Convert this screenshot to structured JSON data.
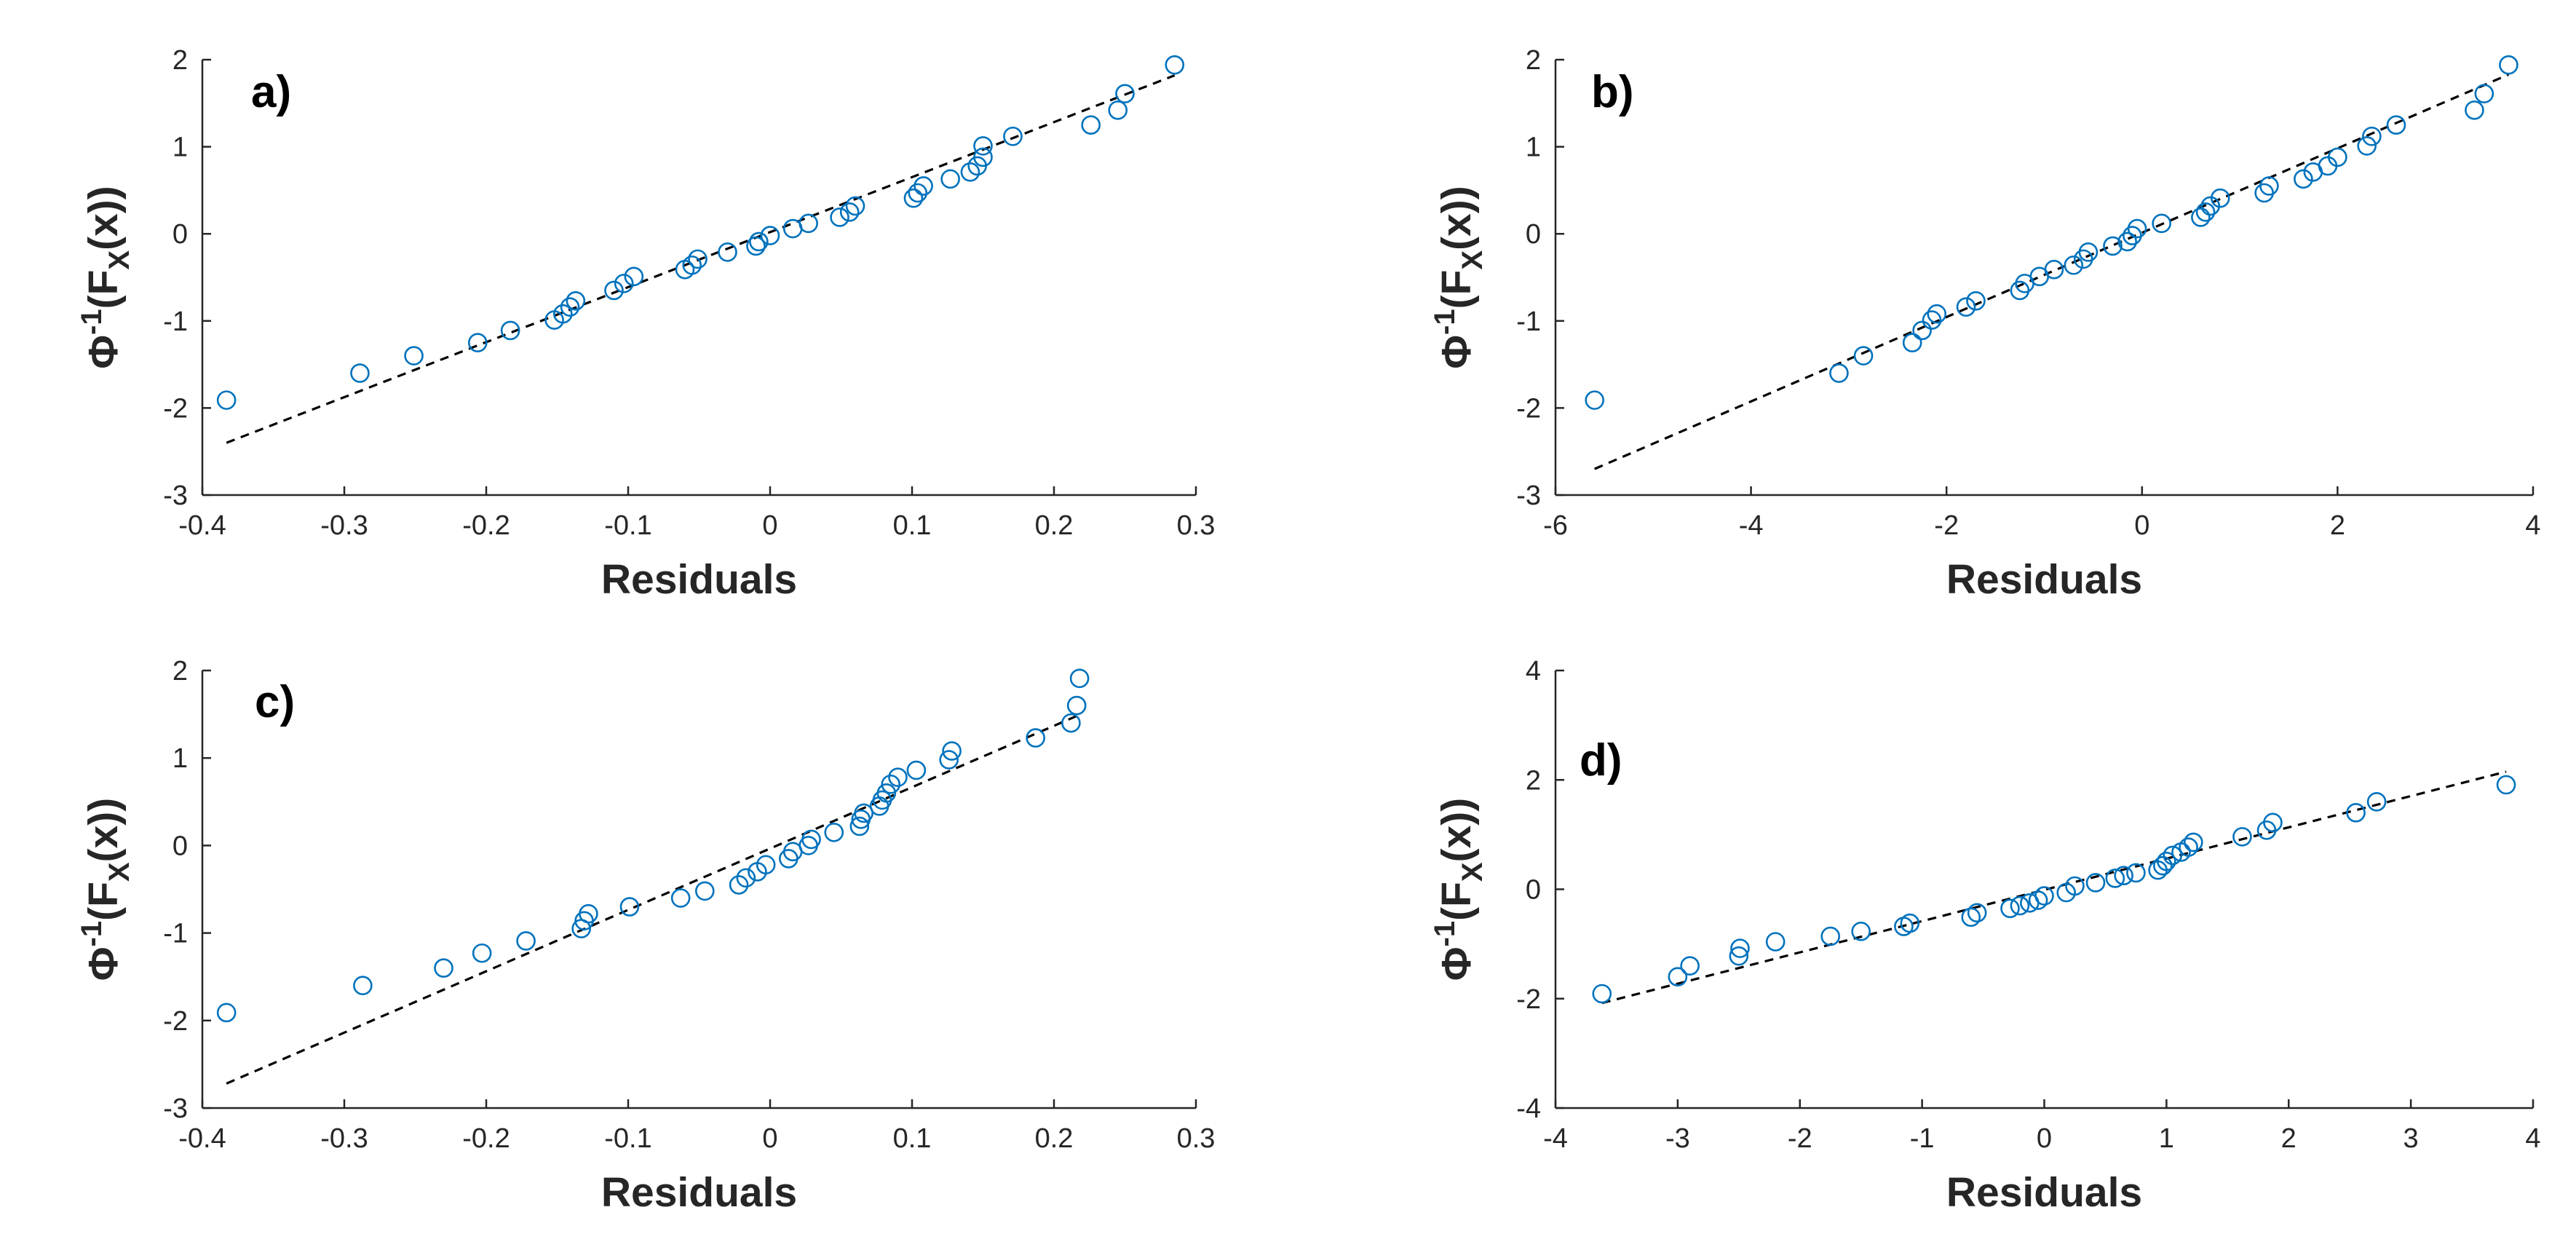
{
  "figure": {
    "background": "#ffffff",
    "marker_color": "#0072BD",
    "line_color": "#000000",
    "axis_color": "#262626"
  },
  "chart_data": [
    {
      "type": "scatter",
      "panel": "a)",
      "xlabel": "Residuals",
      "ylabel_parts": [
        "Φ",
        "-1",
        "(F",
        "X",
        "(x))"
      ],
      "xlim": [
        -0.4,
        0.3
      ],
      "ylim": [
        -3,
        2
      ],
      "xticks": [
        -0.4,
        -0.3,
        -0.2,
        -0.1,
        0,
        0.1,
        0.2,
        0.3
      ],
      "xtick_labels": [
        "-0.4",
        "-0.3",
        "-0.2",
        "-0.1",
        "0",
        "0.1",
        "0.2",
        "0.3"
      ],
      "yticks": [
        -3,
        -2,
        -1,
        0,
        1,
        2
      ],
      "ytick_labels": [
        "-3",
        "-2",
        "-1",
        "0",
        "1",
        "2"
      ],
      "series": [
        {
          "name": "residuals",
          "style": "circle-marker",
          "x": [
            -0.383,
            -0.289,
            -0.251,
            -0.206,
            -0.183,
            -0.152,
            -0.146,
            -0.141,
            -0.137,
            -0.11,
            -0.103,
            -0.096,
            -0.06,
            -0.055,
            -0.051,
            -0.03,
            -0.01,
            -0.008,
            0.0,
            0.016,
            0.027,
            0.049,
            0.056,
            0.06,
            0.101,
            0.104,
            0.108,
            0.127,
            0.141,
            0.146,
            0.15,
            0.15,
            0.171,
            0.226,
            0.245,
            0.25,
            0.285
          ],
          "y": [
            -1.91,
            -1.6,
            -1.4,
            -1.25,
            -1.11,
            -0.99,
            -0.92,
            -0.84,
            -0.77,
            -0.65,
            -0.57,
            -0.49,
            -0.41,
            -0.36,
            -0.29,
            -0.21,
            -0.14,
            -0.09,
            -0.02,
            0.06,
            0.12,
            0.19,
            0.25,
            0.32,
            0.41,
            0.47,
            0.55,
            0.63,
            0.71,
            0.78,
            0.88,
            1.01,
            1.12,
            1.25,
            1.42,
            1.61,
            1.94
          ]
        },
        {
          "name": "reference",
          "style": "dashed-line",
          "x": [
            -0.383,
            0.285
          ],
          "y": [
            -2.4,
            1.82
          ]
        }
      ]
    },
    {
      "type": "scatter",
      "panel": "b)",
      "xlabel": "Residuals",
      "ylabel_parts": [
        "Φ",
        "-1",
        "(F",
        "X",
        "(x))"
      ],
      "xlim": [
        -6,
        4
      ],
      "ylim": [
        -3,
        2
      ],
      "xticks": [
        -6,
        -4,
        -2,
        0,
        2,
        4
      ],
      "xtick_labels": [
        "-6",
        "-4",
        "-2",
        "0",
        "2",
        "4"
      ],
      "yticks": [
        -3,
        -2,
        -1,
        0,
        1,
        2
      ],
      "ytick_labels": [
        "-3",
        "-2",
        "-1",
        "0",
        "1",
        "2"
      ],
      "series": [
        {
          "name": "residuals",
          "style": "circle-marker",
          "x": [
            -5.6,
            -3.1,
            -2.85,
            -2.35,
            -2.25,
            -2.15,
            -2.1,
            -1.8,
            -1.7,
            -1.25,
            -1.2,
            -1.05,
            -0.9,
            -0.7,
            -0.6,
            -0.55,
            -0.3,
            -0.15,
            -0.1,
            -0.05,
            0.2,
            0.6,
            0.65,
            0.7,
            0.8,
            1.25,
            1.3,
            1.65,
            1.75,
            1.9,
            2.0,
            2.3,
            2.35,
            2.6,
            3.4,
            3.5,
            3.75
          ],
          "y": [
            -1.91,
            -1.6,
            -1.4,
            -1.25,
            -1.11,
            -0.99,
            -0.92,
            -0.84,
            -0.77,
            -0.65,
            -0.57,
            -0.49,
            -0.41,
            -0.36,
            -0.29,
            -0.21,
            -0.14,
            -0.09,
            -0.02,
            0.06,
            0.12,
            0.19,
            0.25,
            0.32,
            0.41,
            0.47,
            0.55,
            0.63,
            0.71,
            0.78,
            0.88,
            1.01,
            1.12,
            1.25,
            1.42,
            1.61,
            1.94
          ]
        },
        {
          "name": "reference",
          "style": "dashed-line",
          "x": [
            -5.6,
            3.75
          ],
          "y": [
            -2.7,
            1.83
          ]
        }
      ]
    },
    {
      "type": "scatter",
      "panel": "c)",
      "xlabel": "Residuals",
      "ylabel_parts": [
        "Φ",
        "-1",
        "(F",
        "X",
        "(x))"
      ],
      "xlim": [
        -0.4,
        0.3
      ],
      "ylim": [
        -3,
        2
      ],
      "xticks": [
        -0.4,
        -0.3,
        -0.2,
        -0.1,
        0,
        0.1,
        0.2,
        0.3
      ],
      "xtick_labels": [
        "-0.4",
        "-0.3",
        "-0.2",
        "-0.1",
        "0",
        "0.1",
        "0.2",
        "0.3"
      ],
      "yticks": [
        -3,
        -2,
        -1,
        0,
        1,
        2
      ],
      "ytick_labels": [
        "-3",
        "-2",
        "-1",
        "0",
        "1",
        "2"
      ],
      "series": [
        {
          "name": "residuals",
          "style": "circle-marker",
          "x": [
            -0.383,
            -0.287,
            -0.23,
            -0.203,
            -0.172,
            -0.133,
            -0.131,
            -0.128,
            -0.099,
            -0.063,
            -0.046,
            -0.022,
            -0.017,
            -0.009,
            -0.003,
            0.013,
            0.016,
            0.027,
            0.029,
            0.045,
            0.063,
            0.064,
            0.066,
            0.077,
            0.079,
            0.082,
            0.085,
            0.09,
            0.103,
            0.126,
            0.128,
            0.187,
            0.212,
            0.216,
            0.218
          ],
          "y": [
            -1.91,
            -1.6,
            -1.4,
            -1.23,
            -1.09,
            -0.95,
            -0.86,
            -0.78,
            -0.7,
            -0.6,
            -0.52,
            -0.45,
            -0.37,
            -0.3,
            -0.22,
            -0.15,
            -0.07,
            0.0,
            0.07,
            0.15,
            0.22,
            0.3,
            0.37,
            0.45,
            0.52,
            0.6,
            0.7,
            0.78,
            0.86,
            0.98,
            1.08,
            1.23,
            1.4,
            1.6,
            1.91
          ]
        },
        {
          "name": "reference",
          "style": "dashed-line",
          "x": [
            -0.383,
            0.216
          ],
          "y": [
            -2.72,
            1.48
          ]
        }
      ]
    },
    {
      "type": "scatter",
      "panel": "d)",
      "xlabel": "Residuals",
      "ylabel_parts": [
        "Φ",
        "-1",
        "(F",
        "X",
        "(x))"
      ],
      "xlim": [
        -4,
        4
      ],
      "ylim": [
        -4,
        4
      ],
      "xticks": [
        -4,
        -3,
        -2,
        -1,
        0,
        1,
        2,
        3,
        4
      ],
      "xtick_labels": [
        "-4",
        "-3",
        "-2",
        "-1",
        "0",
        "1",
        "2",
        "3",
        "4"
      ],
      "yticks": [
        -4,
        -2,
        0,
        2,
        4
      ],
      "ytick_labels": [
        "-4",
        "-2",
        "0",
        "2",
        "4"
      ],
      "series": [
        {
          "name": "residuals",
          "style": "circle-marker",
          "x": [
            -3.62,
            -3.0,
            -2.9,
            -2.5,
            -2.49,
            -2.2,
            -1.75,
            -1.5,
            -1.15,
            -1.1,
            -0.6,
            -0.55,
            -0.28,
            -0.2,
            -0.12,
            -0.05,
            0.0,
            0.18,
            0.25,
            0.42,
            0.58,
            0.65,
            0.75,
            0.93,
            0.97,
            1.0,
            1.05,
            1.12,
            1.18,
            1.22,
            1.62,
            1.82,
            1.87,
            2.55,
            2.72,
            3.78
          ],
          "y": [
            -1.91,
            -1.6,
            -1.4,
            -1.22,
            -1.08,
            -0.96,
            -0.86,
            -0.77,
            -0.68,
            -0.62,
            -0.51,
            -0.43,
            -0.35,
            -0.3,
            -0.25,
            -0.2,
            -0.12,
            -0.06,
            0.06,
            0.12,
            0.2,
            0.25,
            0.3,
            0.35,
            0.43,
            0.51,
            0.62,
            0.68,
            0.77,
            0.86,
            0.96,
            1.08,
            1.22,
            1.4,
            1.6,
            1.91
          ]
        },
        {
          "name": "reference",
          "style": "dashed-line",
          "x": [
            -3.62,
            3.78
          ],
          "y": [
            -2.08,
            2.15
          ]
        }
      ]
    }
  ]
}
